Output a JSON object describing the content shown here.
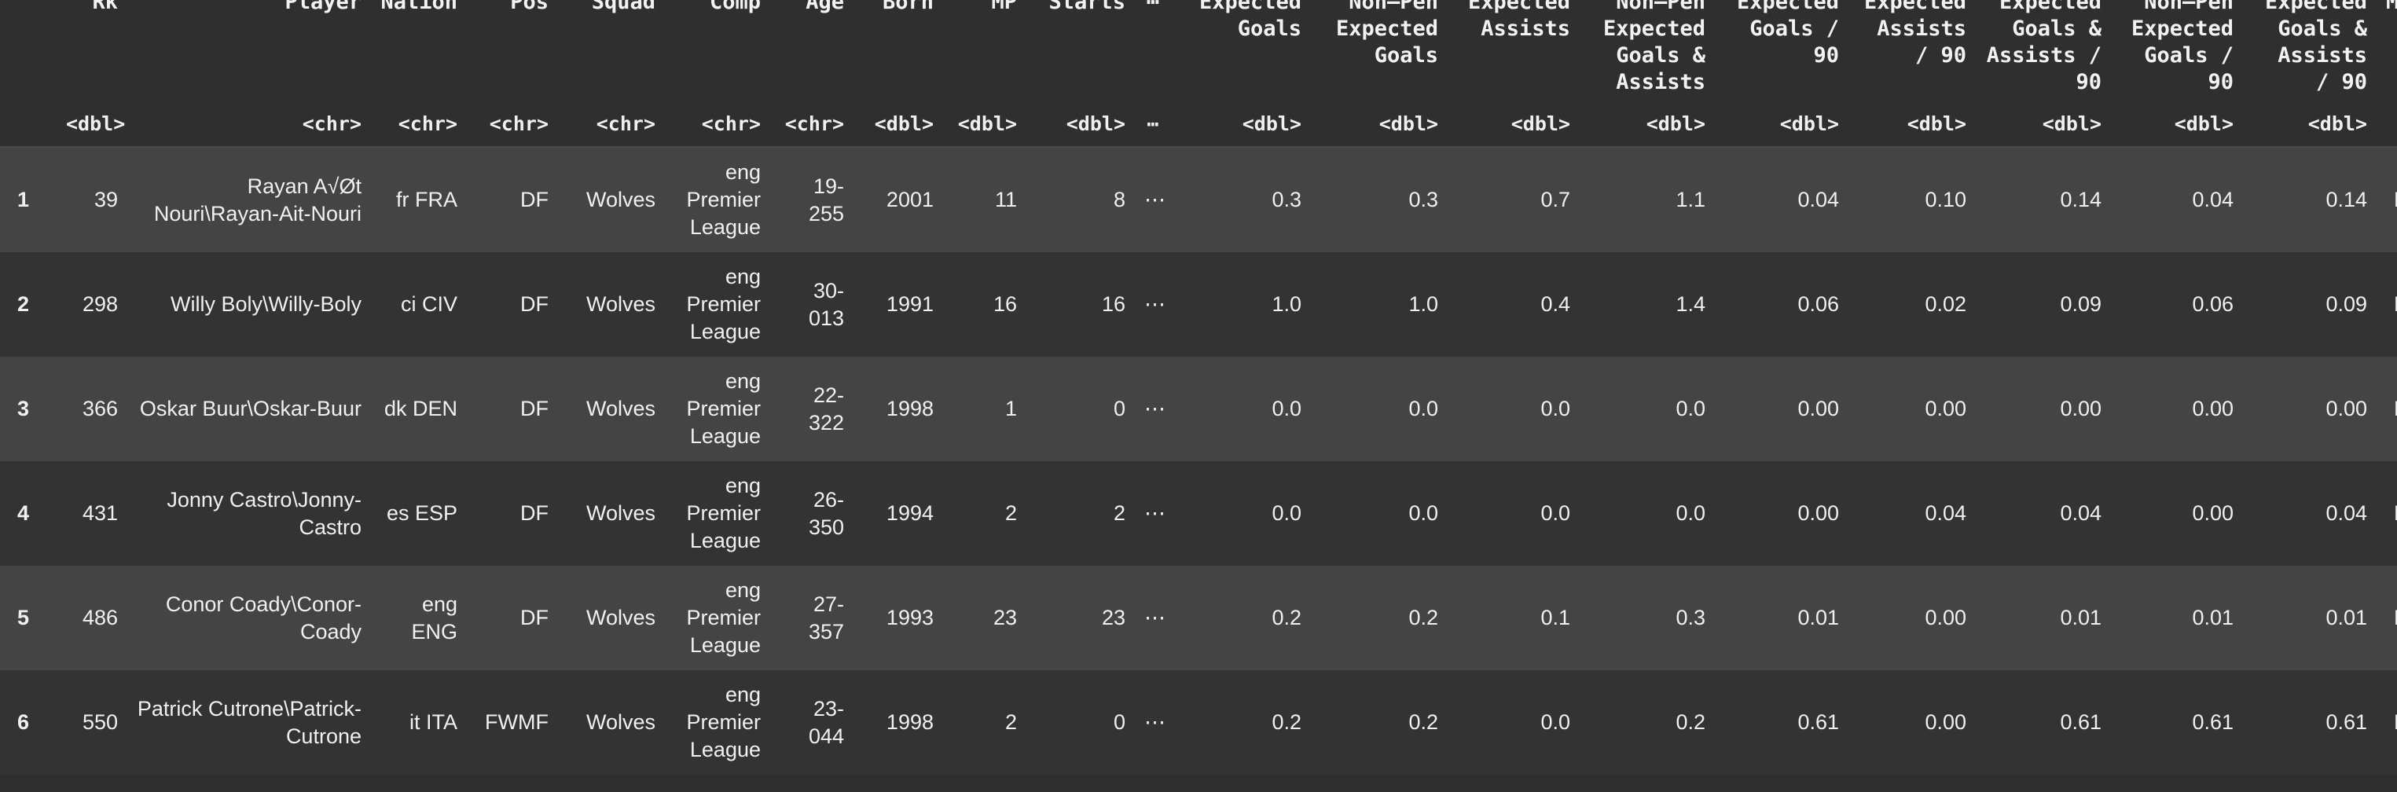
{
  "columns": [
    {
      "key": "idx",
      "label": "",
      "type": ""
    },
    {
      "key": "rk",
      "label": "Rk",
      "type": "<dbl>"
    },
    {
      "key": "player",
      "label": "Player",
      "type": "<chr>"
    },
    {
      "key": "nation",
      "label": "Nation",
      "type": "<chr>"
    },
    {
      "key": "pos",
      "label": "Pos",
      "type": "<chr>"
    },
    {
      "key": "squad",
      "label": "Squad",
      "type": "<chr>"
    },
    {
      "key": "comp",
      "label": "Comp",
      "type": "<chr>"
    },
    {
      "key": "age",
      "label": "Age",
      "type": "<chr>"
    },
    {
      "key": "born",
      "label": "Born",
      "type": "<dbl>"
    },
    {
      "key": "mp",
      "label": "MP",
      "type": "<dbl>"
    },
    {
      "key": "starts",
      "label": "Starts",
      "type": "<dbl>"
    },
    {
      "key": "ell",
      "label": "⋯",
      "type": "⋯"
    },
    {
      "key": "xg",
      "label": "Expected Goals",
      "type": "<dbl>"
    },
    {
      "key": "npxg",
      "label": "Non—Pen Expected Goals",
      "type": "<dbl>"
    },
    {
      "key": "xa",
      "label": "Expected Assists",
      "type": "<dbl>"
    },
    {
      "key": "npxga",
      "label": "Non—Pen Expected Goals & Assists",
      "type": "<dbl>"
    },
    {
      "key": "xg90",
      "label": "Expected Goals / 90",
      "type": "<dbl>"
    },
    {
      "key": "xa90",
      "label": "Expected Assists / 90",
      "type": "<dbl>"
    },
    {
      "key": "xga90",
      "label": "Expected Goals & Assists / 90",
      "type": "<dbl>"
    },
    {
      "key": "npxg90",
      "label": "Non—Pen Expected Goals / 90",
      "type": "<dbl>"
    },
    {
      "key": "npxga90",
      "label": "Expected Goals & Assists / 90",
      "type": "<dbl>"
    },
    {
      "key": "match",
      "label": "Matches",
      "type": "<chr>"
    }
  ],
  "rows": [
    {
      "idx": "1",
      "rk": "39",
      "player": "Rayan A√Øt Nouri\\Rayan-Ait-Nouri",
      "nation": "fr FRA",
      "pos": "DF",
      "squad": "Wolves",
      "comp": "eng Premier League",
      "age": "19-255",
      "born": "2001",
      "mp": "11",
      "starts": "8",
      "ell": "⋯",
      "xg": "0.3",
      "npxg": "0.3",
      "xa": "0.7",
      "npxga": "1.1",
      "xg90": "0.04",
      "xa90": "0.10",
      "xga90": "0.14",
      "npxg90": "0.04",
      "npxga90": "0.14",
      "match": "Matches"
    },
    {
      "idx": "2",
      "rk": "298",
      "player": "Willy Boly\\Willy-Boly",
      "nation": "ci CIV",
      "pos": "DF",
      "squad": "Wolves",
      "comp": "eng Premier League",
      "age": "30-013",
      "born": "1991",
      "mp": "16",
      "starts": "16",
      "ell": "⋯",
      "xg": "1.0",
      "npxg": "1.0",
      "xa": "0.4",
      "npxga": "1.4",
      "xg90": "0.06",
      "xa90": "0.02",
      "xga90": "0.09",
      "npxg90": "0.06",
      "npxga90": "0.09",
      "match": "Matches"
    },
    {
      "idx": "3",
      "rk": "366",
      "player": "Oskar Buur\\Oskar-Buur",
      "nation": "dk DEN",
      "pos": "DF",
      "squad": "Wolves",
      "comp": "eng Premier League",
      "age": "22-322",
      "born": "1998",
      "mp": "1",
      "starts": "0",
      "ell": "⋯",
      "xg": "0.0",
      "npxg": "0.0",
      "xa": "0.0",
      "npxga": "0.0",
      "xg90": "0.00",
      "xa90": "0.00",
      "xga90": "0.00",
      "npxg90": "0.00",
      "npxga90": "0.00",
      "match": "Matches"
    },
    {
      "idx": "4",
      "rk": "431",
      "player": "Jonny Castro\\Jonny-Castro",
      "nation": "es ESP",
      "pos": "DF",
      "squad": "Wolves",
      "comp": "eng Premier League",
      "age": "26-350",
      "born": "1994",
      "mp": "2",
      "starts": "2",
      "ell": "⋯",
      "xg": "0.0",
      "npxg": "0.0",
      "xa": "0.0",
      "npxga": "0.0",
      "xg90": "0.00",
      "xa90": "0.04",
      "xga90": "0.04",
      "npxg90": "0.00",
      "npxga90": "0.04",
      "match": "Matches"
    },
    {
      "idx": "5",
      "rk": "486",
      "player": "Conor Coady\\Conor-Coady",
      "nation": "eng ENG",
      "pos": "DF",
      "squad": "Wolves",
      "comp": "eng Premier League",
      "age": "27-357",
      "born": "1993",
      "mp": "23",
      "starts": "23",
      "ell": "⋯",
      "xg": "0.2",
      "npxg": "0.2",
      "xa": "0.1",
      "npxga": "0.3",
      "xg90": "0.01",
      "xa90": "0.00",
      "xga90": "0.01",
      "npxg90": "0.01",
      "npxga90": "0.01",
      "match": "Matches"
    },
    {
      "idx": "6",
      "rk": "550",
      "player": "Patrick Cutrone\\Patrick-Cutrone",
      "nation": "it ITA",
      "pos": "FWMF",
      "squad": "Wolves",
      "comp": "eng Premier League",
      "age": "23-044",
      "born": "1998",
      "mp": "2",
      "starts": "0",
      "ell": "⋯",
      "xg": "0.2",
      "npxg": "0.2",
      "xa": "0.0",
      "npxga": "0.2",
      "xg90": "0.61",
      "xa90": "0.00",
      "xga90": "0.61",
      "npxg90": "0.61",
      "npxga90": "0.61",
      "match": "Matches"
    }
  ],
  "colors": {
    "background": "#2f2f2f",
    "row_odd": "#444444",
    "row_even": "#333333",
    "text": "#f0f0f0"
  }
}
